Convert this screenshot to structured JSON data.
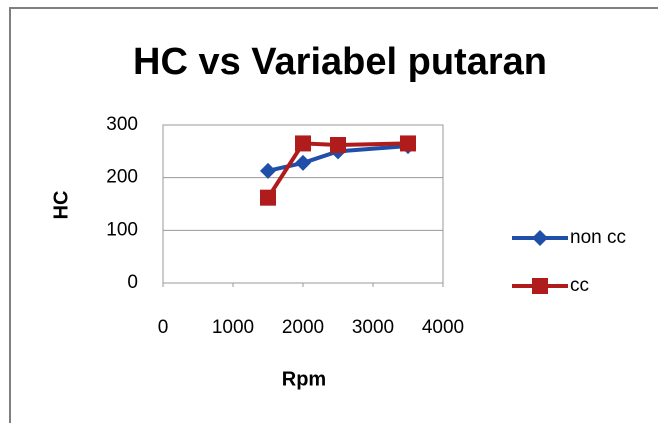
{
  "chart_data": {
    "type": "line",
    "title": "HC vs Variabel putaran",
    "x_label": "Rpm",
    "y_label": "HC",
    "x": [
      1500,
      2000,
      2500,
      3500
    ],
    "series": [
      {
        "name": "non cc",
        "color": "#1f4fa8",
        "marker": "diamond",
        "values": [
          213,
          228,
          250,
          260
        ]
      },
      {
        "name": "cc",
        "color": "#b01c1c",
        "marker": "square",
        "values": [
          162,
          265,
          262,
          265
        ]
      }
    ],
    "xlim": [
      0,
      4000
    ],
    "xticks": [
      0,
      1000,
      2000,
      3000,
      4000
    ],
    "ylim": [
      0,
      300
    ],
    "yticks": [
      0,
      100,
      200,
      300
    ],
    "grid": true,
    "legend": "right"
  }
}
